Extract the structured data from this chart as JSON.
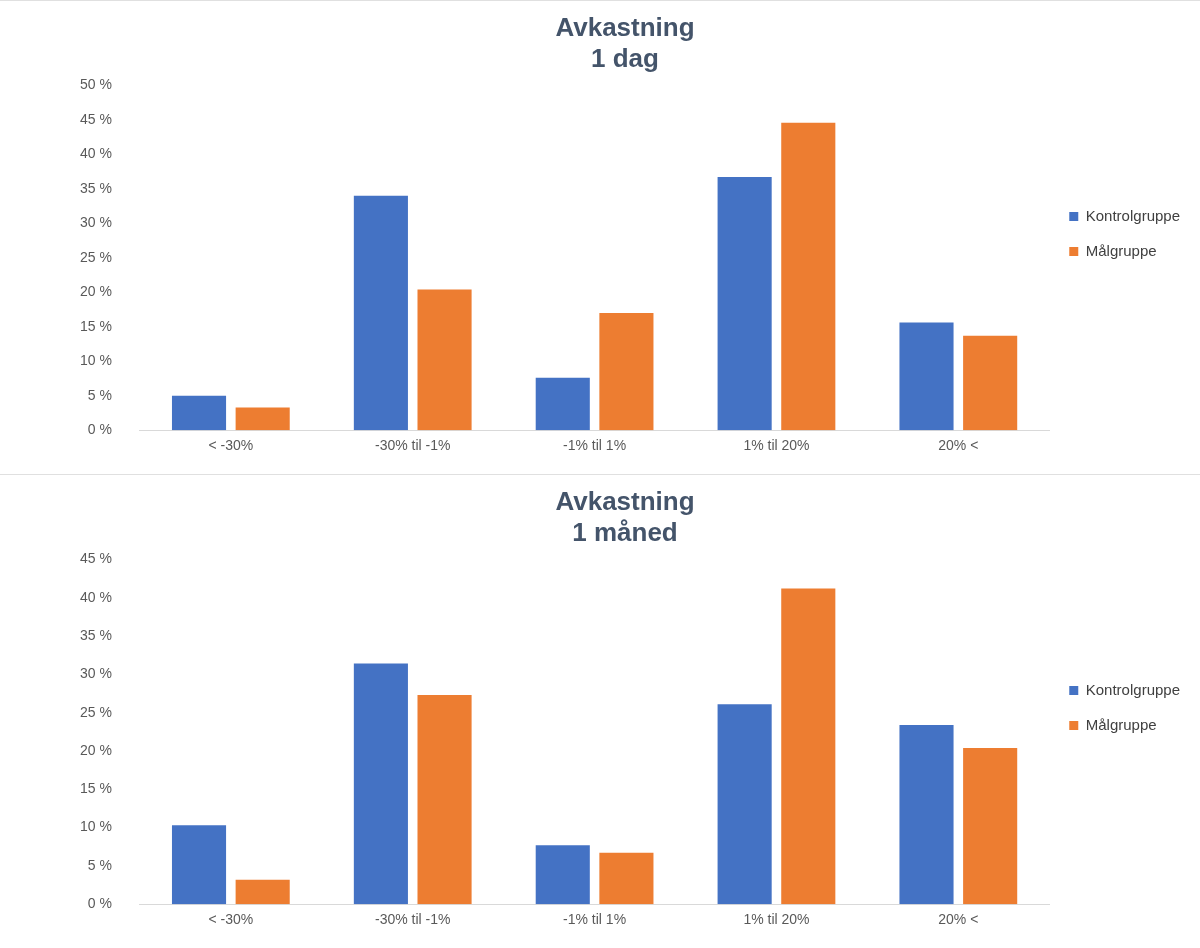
{
  "chart_data": [
    {
      "type": "bar",
      "title": [
        "Avkastning",
        "1 dag"
      ],
      "categories": [
        "< -30%",
        "-30% til -1%",
        "-1% til 1%",
        "1% til 20%",
        "20% <"
      ],
      "series": [
        {
          "name": "Kontrolgruppe",
          "color": "#4472c4",
          "values": [
            5.0,
            34.0,
            7.6,
            36.7,
            15.6
          ]
        },
        {
          "name": "Målgruppe",
          "color": "#ed7d31",
          "values": [
            3.3,
            20.4,
            17.0,
            44.6,
            13.7
          ]
        }
      ],
      "ylim": [
        0,
        50
      ],
      "yticks": [
        {
          "value": 0,
          "label": "0 %"
        },
        {
          "value": 5,
          "label": "5 %"
        },
        {
          "value": 10,
          "label": "10 %"
        },
        {
          "value": 15,
          "label": "15 %"
        },
        {
          "value": 20,
          "label": "20 %"
        },
        {
          "value": 25,
          "label": "25 %"
        },
        {
          "value": 30,
          "label": "30 %"
        },
        {
          "value": 35,
          "label": "35 %"
        },
        {
          "value": 40,
          "label": "40 %"
        },
        {
          "value": 45,
          "label": "45 %"
        },
        {
          "value": 50,
          "label": "50 %"
        }
      ],
      "legend": "right"
    },
    {
      "type": "bar",
      "title": [
        "Avkastning",
        "1 måned"
      ],
      "categories": [
        "< -30%",
        "-30% til -1%",
        "-1% til 1%",
        "1% til 20%",
        "20% <"
      ],
      "series": [
        {
          "name": "Kontrolgruppe",
          "color": "#4472c4",
          "values": [
            10.3,
            31.4,
            7.7,
            26.1,
            23.4
          ]
        },
        {
          "name": "Målgruppe",
          "color": "#ed7d31",
          "values": [
            3.2,
            27.3,
            6.7,
            41.2,
            20.4
          ]
        }
      ],
      "ylim": [
        0,
        45
      ],
      "yticks": [
        {
          "value": 0,
          "label": "0 %"
        },
        {
          "value": 5,
          "label": "5 %"
        },
        {
          "value": 10,
          "label": "10 %"
        },
        {
          "value": 15,
          "label": "15 %"
        },
        {
          "value": 20,
          "label": "20 %"
        },
        {
          "value": 25,
          "label": "25 %"
        },
        {
          "value": 30,
          "label": "30 %"
        },
        {
          "value": 35,
          "label": "35 %"
        },
        {
          "value": 40,
          "label": "40 %"
        },
        {
          "value": 45,
          "label": "45 %"
        }
      ],
      "legend": "right"
    }
  ]
}
